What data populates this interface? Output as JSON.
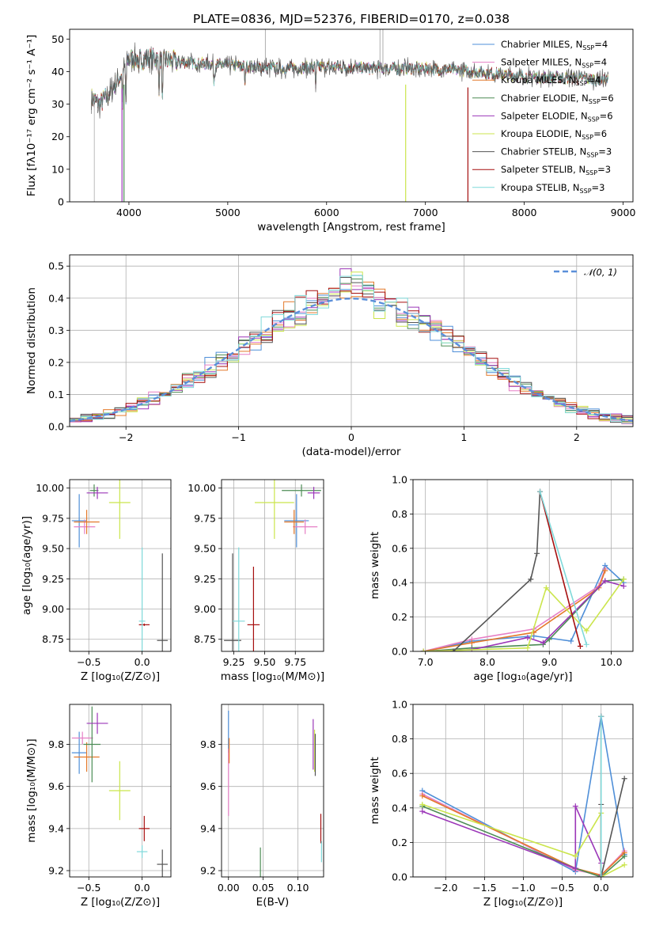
{
  "title": "PLATE=0836, MJD=52376, FIBERID=0170, z=0.038",
  "models": [
    {
      "name": "Chabrier MILES",
      "nssp": "4",
      "color": "#4f8fd8"
    },
    {
      "name": "Salpeter MILES",
      "nssp": "4",
      "color": "#e67fc5"
    },
    {
      "name": "Kroupa MILES",
      "nssp": "4",
      "color": "#e4792a"
    },
    {
      "name": "Chabrier ELODIE",
      "nssp": "6",
      "color": "#4c8c55"
    },
    {
      "name": "Salpeter ELODIE",
      "nssp": "6",
      "color": "#9b36b8"
    },
    {
      "name": "Kroupa ELODIE",
      "nssp": "6",
      "color": "#cbe54c"
    },
    {
      "name": "Chabrier STELIB",
      "nssp": "3",
      "color": "#555555"
    },
    {
      "name": "Salpeter STELIB",
      "nssp": "3",
      "color": "#a60f0f"
    },
    {
      "name": "Kroupa STELIB",
      "nssp": "3",
      "color": "#7fd9da"
    }
  ],
  "chart_data": [
    {
      "type": "line",
      "id": "spectrum",
      "title": "PLATE=0836, MJD=52376, FIBERID=0170, z=0.038",
      "xlabel": "wavelength [Angstrom, rest frame]",
      "ylabel": "Flux [fλ10⁻¹⁷ erg cm⁻² s⁻¹ A⁻¹]",
      "xlim": [
        3400,
        9100
      ],
      "ylim": [
        0,
        53
      ],
      "xticks": [
        4000,
        5000,
        6000,
        7000,
        8000,
        9000
      ],
      "yticks": [
        0,
        10,
        20,
        30,
        40,
        50
      ],
      "legend": "top-right",
      "legend_entries": [
        "Chabrier MILES, NSSP=4",
        "Salpeter MILES, NSSP=4",
        "Kroupa MILES, NSSP=4",
        "Chabrier ELODIE, NSSP=6",
        "Salpeter ELODIE, NSSP=6",
        "Kroupa ELODIE, NSSP=6",
        "Chabrier STELIB, NSSP=3",
        "Salpeter STELIB, NSSP=3",
        "Kroupa STELIB, NSSP=3"
      ],
      "continuum": [
        [
          3620,
          32
        ],
        [
          3700,
          30
        ],
        [
          3800,
          33
        ],
        [
          3900,
          38
        ],
        [
          4000,
          44
        ],
        [
          4200,
          44
        ],
        [
          4500,
          43
        ],
        [
          5000,
          42
        ],
        [
          5500,
          41
        ],
        [
          6000,
          41.5
        ],
        [
          6500,
          41
        ],
        [
          7000,
          41
        ],
        [
          7500,
          40
        ],
        [
          8000,
          38.5
        ],
        [
          8500,
          38
        ],
        [
          8850,
          37.5
        ]
      ],
      "dips_to_zero": [
        3930,
        3950,
        6800,
        7430
      ],
      "absorption": [
        [
          3934,
          10
        ],
        [
          3969,
          12
        ],
        [
          4101,
          6
        ],
        [
          4304,
          8
        ],
        [
          4340,
          14
        ],
        [
          4861,
          6
        ],
        [
          5175,
          6
        ],
        [
          5890,
          6
        ]
      ],
      "grid": false
    },
    {
      "type": "step",
      "id": "residuals",
      "xlabel": "(data-model)/error",
      "ylabel": "Normed distribution",
      "xlim": [
        -2.5,
        2.5
      ],
      "ylim": [
        0,
        0.535
      ],
      "xticks": [
        -2,
        -1,
        0,
        1,
        2
      ],
      "yticks": [
        0.0,
        0.1,
        0.2,
        0.3,
        0.4,
        0.5
      ],
      "legend": "top-right",
      "legend_entries": [
        "𝒩(0, 1)"
      ],
      "bin_width": 0.1,
      "grid": true
    },
    {
      "type": "scatter",
      "id": "age_vs_Z",
      "xlabel": "Z [log₁₀(Z/Z⊙)]",
      "ylabel": "age  [log₁₀(age/yr)]",
      "xlim": [
        -0.68,
        0.27
      ],
      "ylim": [
        8.65,
        10.07
      ],
      "xticks": [
        -0.5,
        0.0
      ],
      "yticks": [
        8.75,
        9.0,
        9.25,
        9.5,
        9.75,
        10.0
      ],
      "grid": true,
      "points": [
        {
          "x": -0.59,
          "y": 9.73,
          "dx": 0.07,
          "dy": 0.22
        },
        {
          "x": -0.54,
          "y": 9.68,
          "dx": 0.1,
          "dy": 0.06
        },
        {
          "x": -0.52,
          "y": 9.72,
          "dx": 0.12,
          "dy": 0.1
        },
        {
          "x": -0.45,
          "y": 9.98,
          "dx": 0.04,
          "dy": 0.05
        },
        {
          "x": -0.42,
          "y": 9.96,
          "dx": 0.1,
          "dy": 0.05
        },
        {
          "x": -0.21,
          "y": 9.88,
          "dx": 0.1,
          "dy": 0.3
        },
        {
          "x": 0.19,
          "y": 8.74,
          "dx": 0.05,
          "dy": 0.72
        },
        {
          "x": 0.02,
          "y": 8.87,
          "dx": 0.05,
          "dy": 0.01
        },
        {
          "x": 0.0,
          "y": 8.9,
          "dx": 0.03,
          "dy": 0.61
        }
      ]
    },
    {
      "type": "scatter",
      "id": "age_vs_mass",
      "xlabel": "mass [log₁₀(M/M⊙)]",
      "ylabel": "",
      "xlim": [
        9.15,
        9.98
      ],
      "ylim": [
        8.65,
        10.07
      ],
      "xticks": [
        9.25,
        9.5,
        9.75
      ],
      "yticks": [
        8.75,
        9.0,
        9.25,
        9.5,
        9.75,
        10.0
      ],
      "grid": true,
      "points": [
        {
          "x": 9.76,
          "y": 9.73,
          "dx": 0.1,
          "dy": 0.22
        },
        {
          "x": 9.83,
          "y": 9.68,
          "dx": 0.1,
          "dy": 0.06
        },
        {
          "x": 9.74,
          "y": 9.72,
          "dx": 0.08,
          "dy": 0.1
        },
        {
          "x": 9.8,
          "y": 9.98,
          "dx": 0.16,
          "dy": 0.05
        },
        {
          "x": 9.9,
          "y": 9.96,
          "dx": 0.05,
          "dy": 0.05
        },
        {
          "x": 9.58,
          "y": 9.88,
          "dx": 0.16,
          "dy": 0.3
        },
        {
          "x": 9.24,
          "y": 8.74,
          "dx": 0.07,
          "dy": 0.72
        },
        {
          "x": 9.41,
          "y": 8.87,
          "dx": 0.05,
          "dy": 0.48
        },
        {
          "x": 9.29,
          "y": 8.9,
          "dx": 0.05,
          "dy": 0.61
        }
      ]
    },
    {
      "type": "line",
      "id": "weight_vs_age",
      "xlabel": "age  [log₁₀(age/yr)]",
      "ylabel": "mass weight",
      "xlim": [
        6.8,
        10.35
      ],
      "ylim": [
        0,
        1.0
      ],
      "xticks": [
        7,
        8,
        9,
        10
      ],
      "yticks": [
        0.0,
        0.2,
        0.4,
        0.6,
        0.8,
        1.0
      ],
      "grid": true,
      "series": [
        {
          "x": [
            6.97,
            7.75,
            8.75,
            9.35,
            9.9,
            10.2
          ],
          "y": [
            0.0,
            0.06,
            0.09,
            0.06,
            0.5,
            0.4
          ]
        },
        {
          "x": [
            6.97,
            7.75,
            8.75,
            9.8,
            9.9
          ],
          "y": [
            0.0,
            0.07,
            0.13,
            0.38,
            0.48
          ]
        },
        {
          "x": [
            6.97,
            7.75,
            8.75,
            9.8,
            9.9
          ],
          "y": [
            0.0,
            0.05,
            0.11,
            0.37,
            0.47
          ]
        },
        {
          "x": [
            6.97,
            7.75,
            8.9,
            9.0,
            9.9,
            10.2
          ],
          "y": [
            0.0,
            0.02,
            0.04,
            0.07,
            0.41,
            0.42
          ]
        },
        {
          "x": [
            6.97,
            7.75,
            8.65,
            8.9,
            9.9,
            10.2
          ],
          "y": [
            0.0,
            0.01,
            0.08,
            0.05,
            0.41,
            0.38
          ]
        },
        {
          "x": [
            6.97,
            8.65,
            8.95,
            9.6,
            10.2
          ],
          "y": [
            0.0,
            0.02,
            0.37,
            0.12,
            0.42
          ]
        },
        {
          "x": [
            7.45,
            8.7,
            8.8,
            8.85
          ],
          "y": [
            0.0,
            0.42,
            0.57,
            0.93
          ]
        },
        {
          "x": [
            8.85,
            9.5
          ],
          "y": [
            0.93,
            0.03
          ]
        },
        {
          "x": [
            8.85,
            9.6
          ],
          "y": [
            0.93,
            0.04
          ]
        }
      ]
    },
    {
      "type": "scatter",
      "id": "mass_vs_Z",
      "xlabel": "Z [log₁₀(Z/Z⊙)]",
      "ylabel": "mass [log₁₀(M/M⊙)]",
      "xlim": [
        -0.68,
        0.27
      ],
      "ylim": [
        9.17,
        9.99
      ],
      "xticks": [
        -0.5,
        0.0
      ],
      "yticks": [
        9.2,
        9.4,
        9.6,
        9.8
      ],
      "grid": true,
      "points": [
        {
          "x": -0.59,
          "y": 9.76,
          "dx": 0.07,
          "dy": 0.1
        },
        {
          "x": -0.56,
          "y": 9.83,
          "dx": 0.1,
          "dy": 0.03
        },
        {
          "x": -0.52,
          "y": 9.74,
          "dx": 0.12,
          "dy": 0.07
        },
        {
          "x": -0.47,
          "y": 9.8,
          "dx": 0.08,
          "dy": 0.18
        },
        {
          "x": -0.42,
          "y": 9.9,
          "dx": 0.1,
          "dy": 0.05
        },
        {
          "x": -0.21,
          "y": 9.58,
          "dx": 0.1,
          "dy": 0.14
        },
        {
          "x": 0.19,
          "y": 9.23,
          "dx": 0.05,
          "dy": 0.07
        },
        {
          "x": 0.02,
          "y": 9.4,
          "dx": 0.05,
          "dy": 0.06
        },
        {
          "x": 0.0,
          "y": 9.29,
          "dx": 0.05,
          "dy": 0.03
        }
      ]
    },
    {
      "type": "scatter",
      "id": "mass_vs_EBV",
      "xlabel": "E(B-V)",
      "ylabel": "",
      "xlim": [
        -0.01,
        0.137
      ],
      "ylim": [
        9.17,
        9.99
      ],
      "xticks": [
        0.0,
        0.05,
        0.1
      ],
      "yticks": [
        9.2,
        9.4,
        9.6,
        9.8
      ],
      "grid": true,
      "points": [
        {
          "x": 0.0,
          "y": 9.86,
          "dx": 0,
          "dy": 0.1
        },
        {
          "x": 0.0,
          "y": 9.62,
          "dx": 0,
          "dy": 0.16
        },
        {
          "x": 0.001,
          "y": 9.77,
          "dx": 0,
          "dy": 0.06
        },
        {
          "x": 0.046,
          "y": 9.22,
          "dx": 0,
          "dy": 0.09
        },
        {
          "x": 0.122,
          "y": 9.8,
          "dx": 0,
          "dy": 0.12
        },
        {
          "x": 0.124,
          "y": 9.77,
          "dx": 0,
          "dy": 0.1
        },
        {
          "x": 0.125,
          "y": 9.75,
          "dx": 0,
          "dy": 0.1
        },
        {
          "x": 0.133,
          "y": 9.4,
          "dx": 0,
          "dy": 0.07
        },
        {
          "x": 0.134,
          "y": 9.29,
          "dx": 0,
          "dy": 0.05
        }
      ]
    },
    {
      "type": "line",
      "id": "weight_vs_Z",
      "xlabel": "Z [log₁₀(Z/Z⊙)]",
      "ylabel": "mass weight",
      "xlim": [
        -2.42,
        0.41
      ],
      "ylim": [
        0,
        1.0
      ],
      "xticks": [
        -2.0,
        -1.5,
        -1.0,
        -0.5,
        0.0
      ],
      "yticks": [
        0.0,
        0.2,
        0.4,
        0.6,
        0.8,
        1.0
      ],
      "grid": true,
      "series": [
        {
          "x": [
            -2.3,
            -0.33,
            0.0,
            0.3
          ],
          "y": [
            0.5,
            0.03,
            0.93,
            0.13
          ]
        },
        {
          "x": [
            -2.3,
            -0.33,
            0.0,
            0.3
          ],
          "y": [
            0.48,
            0.04,
            0.01,
            0.15
          ]
        },
        {
          "x": [
            -2.3,
            -0.33,
            0.0,
            0.3
          ],
          "y": [
            0.47,
            0.05,
            0.01,
            0.14
          ]
        },
        {
          "x": [
            -2.3,
            -0.33,
            0.0,
            0.3
          ],
          "y": [
            0.41,
            0.05,
            0.0,
            0.12
          ]
        },
        {
          "x": [
            -2.3,
            -0.33,
            -0.33,
            0.0,
            0.0
          ],
          "y": [
            0.38,
            0.05,
            0.41,
            0.08,
            0.01
          ]
        },
        {
          "x": [
            -2.3,
            -0.33,
            0.0,
            0.0,
            0.3
          ],
          "y": [
            0.42,
            0.12,
            0.37,
            0.0,
            0.07
          ]
        },
        {
          "x": [
            0.0,
            0.0,
            0.3
          ],
          "y": [
            0.42,
            0.0,
            0.57
          ]
        },
        {
          "x": [
            0.0,
            0.0
          ],
          "y": [
            0.93,
            0.0
          ]
        },
        {
          "x": [
            0.0,
            0.0
          ],
          "y": [
            0.93,
            0.0
          ]
        }
      ]
    }
  ]
}
